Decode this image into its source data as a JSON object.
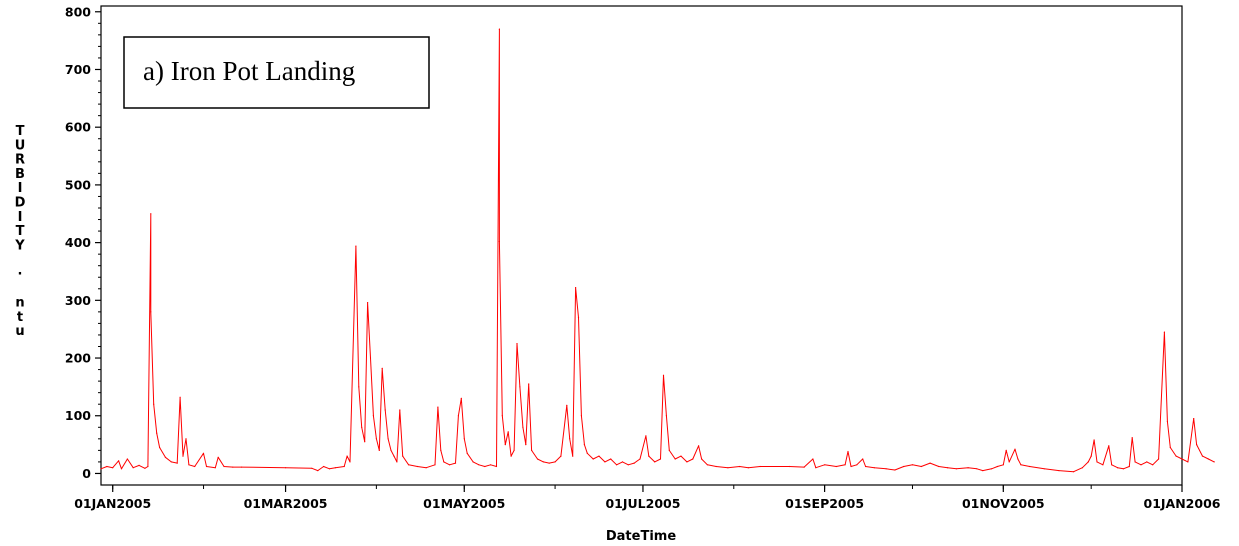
{
  "chart_data": {
    "type": "line",
    "annotation": "a) Iron Pot Landing",
    "xlabel": "DateTime",
    "ylabel_chars": [
      "T",
      "U",
      "R",
      "B",
      "I",
      "D",
      "I",
      "T",
      "Y",
      "",
      "·",
      "",
      "n",
      "t",
      "u"
    ],
    "xlim": [
      "2004-12-28",
      "2006-01-01"
    ],
    "ylim": [
      -20,
      810
    ],
    "yticks": [
      0,
      100,
      200,
      300,
      400,
      500,
      600,
      700,
      800
    ],
    "xticks": [
      {
        "date": "2005-01-01",
        "label": "01JAN2005"
      },
      {
        "date": "2005-03-01",
        "label": "01MAR2005"
      },
      {
        "date": "2005-05-01",
        "label": "01MAY2005"
      },
      {
        "date": "2005-07-01",
        "label": "01JUL2005"
      },
      {
        "date": "2005-09-01",
        "label": "01SEP2005"
      },
      {
        "date": "2005-11-01",
        "label": "01NOV2005"
      },
      {
        "date": "2006-01-01",
        "label": "01JAN2006"
      }
    ],
    "grid": false,
    "legend": "none",
    "series": [
      {
        "color": "#ff0000",
        "points": [
          [
            "2004-12-28",
            8
          ],
          [
            "2004-12-30",
            12
          ],
          [
            "2005-01-01",
            10
          ],
          [
            "2005-01-03",
            22
          ],
          [
            "2005-01-04",
            8
          ],
          [
            "2005-01-06",
            25
          ],
          [
            "2005-01-08",
            10
          ],
          [
            "2005-01-10",
            14
          ],
          [
            "2005-01-12",
            9
          ],
          [
            "2005-01-13",
            12
          ],
          [
            "2005-01-14",
            450
          ],
          [
            "2005-01-14",
            280
          ],
          [
            "2005-01-15",
            120
          ],
          [
            "2005-01-16",
            70
          ],
          [
            "2005-01-17",
            45
          ],
          [
            "2005-01-19",
            28
          ],
          [
            "2005-01-21",
            20
          ],
          [
            "2005-01-23",
            18
          ],
          [
            "2005-01-24",
            132
          ],
          [
            "2005-01-25",
            30
          ],
          [
            "2005-01-26",
            60
          ],
          [
            "2005-01-27",
            15
          ],
          [
            "2005-01-29",
            12
          ],
          [
            "2005-02-01",
            35
          ],
          [
            "2005-02-02",
            12
          ],
          [
            "2005-02-05",
            10
          ],
          [
            "2005-02-06",
            28
          ],
          [
            "2005-02-08",
            12
          ],
          [
            "2005-02-11",
            11
          ],
          [
            "2005-02-14",
            11
          ],
          [
            "2005-03-01",
            10
          ],
          [
            "2005-03-10",
            9
          ],
          [
            "2005-03-12",
            5
          ],
          [
            "2005-03-14",
            12
          ],
          [
            "2005-03-16",
            8
          ],
          [
            "2005-03-18",
            10
          ],
          [
            "2005-03-21",
            12
          ],
          [
            "2005-03-22",
            30
          ],
          [
            "2005-03-23",
            20
          ],
          [
            "2005-03-25",
            394
          ],
          [
            "2005-03-26",
            150
          ],
          [
            "2005-03-27",
            80
          ],
          [
            "2005-03-28",
            55
          ],
          [
            "2005-03-29",
            296
          ],
          [
            "2005-03-30",
            200
          ],
          [
            "2005-03-31",
            100
          ],
          [
            "2005-04-01",
            60
          ],
          [
            "2005-04-02",
            40
          ],
          [
            "2005-04-03",
            182
          ],
          [
            "2005-04-04",
            110
          ],
          [
            "2005-04-05",
            60
          ],
          [
            "2005-04-06",
            40
          ],
          [
            "2005-04-07",
            30
          ],
          [
            "2005-04-08",
            20
          ],
          [
            "2005-04-09",
            110
          ],
          [
            "2005-04-10",
            30
          ],
          [
            "2005-04-12",
            15
          ],
          [
            "2005-04-15",
            12
          ],
          [
            "2005-04-18",
            10
          ],
          [
            "2005-04-21",
            15
          ],
          [
            "2005-04-22",
            115
          ],
          [
            "2005-04-23",
            40
          ],
          [
            "2005-04-24",
            20
          ],
          [
            "2005-04-26",
            15
          ],
          [
            "2005-04-28",
            18
          ],
          [
            "2005-04-29",
            100
          ],
          [
            "2005-04-30",
            130
          ],
          [
            "2005-05-01",
            60
          ],
          [
            "2005-05-02",
            35
          ],
          [
            "2005-05-04",
            20
          ],
          [
            "2005-05-06",
            15
          ],
          [
            "2005-05-08",
            12
          ],
          [
            "2005-05-10",
            15
          ],
          [
            "2005-05-12",
            12
          ],
          [
            "2005-05-13",
            770
          ],
          [
            "2005-05-13",
            402
          ],
          [
            "2005-05-14",
            100
          ],
          [
            "2005-05-15",
            50
          ],
          [
            "2005-05-16",
            72
          ],
          [
            "2005-05-17",
            30
          ],
          [
            "2005-05-18",
            40
          ],
          [
            "2005-05-19",
            225
          ],
          [
            "2005-05-20",
            150
          ],
          [
            "2005-05-21",
            80
          ],
          [
            "2005-05-22",
            50
          ],
          [
            "2005-05-23",
            155
          ],
          [
            "2005-05-24",
            40
          ],
          [
            "2005-05-26",
            25
          ],
          [
            "2005-05-28",
            20
          ],
          [
            "2005-05-30",
            18
          ],
          [
            "2005-06-01",
            20
          ],
          [
            "2005-06-03",
            30
          ],
          [
            "2005-06-05",
            118
          ],
          [
            "2005-06-06",
            60
          ],
          [
            "2005-06-07",
            30
          ],
          [
            "2005-06-08",
            322
          ],
          [
            "2005-06-09",
            270
          ],
          [
            "2005-06-10",
            100
          ],
          [
            "2005-06-11",
            50
          ],
          [
            "2005-06-12",
            35
          ],
          [
            "2005-06-14",
            25
          ],
          [
            "2005-06-16",
            30
          ],
          [
            "2005-06-18",
            20
          ],
          [
            "2005-06-20",
            25
          ],
          [
            "2005-06-22",
            15
          ],
          [
            "2005-06-24",
            20
          ],
          [
            "2005-06-26",
            15
          ],
          [
            "2005-06-28",
            18
          ],
          [
            "2005-06-30",
            25
          ],
          [
            "2005-07-02",
            65
          ],
          [
            "2005-07-03",
            30
          ],
          [
            "2005-07-05",
            20
          ],
          [
            "2005-07-07",
            25
          ],
          [
            "2005-07-08",
            170
          ],
          [
            "2005-07-09",
            100
          ],
          [
            "2005-07-10",
            40
          ],
          [
            "2005-07-12",
            25
          ],
          [
            "2005-07-14",
            30
          ],
          [
            "2005-07-16",
            20
          ],
          [
            "2005-07-18",
            25
          ],
          [
            "2005-07-20",
            48
          ],
          [
            "2005-07-21",
            25
          ],
          [
            "2005-07-23",
            15
          ],
          [
            "2005-07-26",
            12
          ],
          [
            "2005-07-30",
            10
          ],
          [
            "2005-08-03",
            12
          ],
          [
            "2005-08-06",
            10
          ],
          [
            "2005-08-10",
            12
          ],
          [
            "2005-08-20",
            12
          ],
          [
            "2005-08-25",
            11
          ],
          [
            "2005-08-28",
            25
          ],
          [
            "2005-08-29",
            10
          ],
          [
            "2005-09-01",
            15
          ],
          [
            "2005-09-05",
            12
          ],
          [
            "2005-09-08",
            15
          ],
          [
            "2005-09-09",
            38
          ],
          [
            "2005-09-10",
            12
          ],
          [
            "2005-09-12",
            15
          ],
          [
            "2005-09-14",
            25
          ],
          [
            "2005-09-15",
            12
          ],
          [
            "2005-09-18",
            10
          ],
          [
            "2005-09-22",
            8
          ],
          [
            "2005-09-25",
            6
          ],
          [
            "2005-09-28",
            12
          ],
          [
            "2005-10-01",
            15
          ],
          [
            "2005-10-04",
            12
          ],
          [
            "2005-10-07",
            18
          ],
          [
            "2005-10-10",
            12
          ],
          [
            "2005-10-13",
            10
          ],
          [
            "2005-10-16",
            8
          ],
          [
            "2005-10-20",
            10
          ],
          [
            "2005-10-23",
            8
          ],
          [
            "2005-10-25",
            5
          ],
          [
            "2005-10-28",
            8
          ],
          [
            "2005-10-30",
            12
          ],
          [
            "2005-11-01",
            15
          ],
          [
            "2005-11-02",
            40
          ],
          [
            "2005-11-03",
            20
          ],
          [
            "2005-11-05",
            42
          ],
          [
            "2005-11-06",
            25
          ],
          [
            "2005-11-07",
            15
          ],
          [
            "2005-11-10",
            12
          ],
          [
            "2005-11-15",
            8
          ],
          [
            "2005-11-20",
            5
          ],
          [
            "2005-11-25",
            3
          ],
          [
            "2005-11-28",
            10
          ],
          [
            "2005-11-30",
            20
          ],
          [
            "2005-12-01",
            30
          ],
          [
            "2005-12-02",
            58
          ],
          [
            "2005-12-03",
            20
          ],
          [
            "2005-12-05",
            15
          ],
          [
            "2005-12-07",
            48
          ],
          [
            "2005-12-08",
            15
          ],
          [
            "2005-12-10",
            10
          ],
          [
            "2005-12-12",
            8
          ],
          [
            "2005-12-14",
            12
          ],
          [
            "2005-12-15",
            62
          ],
          [
            "2005-12-16",
            20
          ],
          [
            "2005-12-18",
            15
          ],
          [
            "2005-12-20",
            20
          ],
          [
            "2005-12-22",
            15
          ],
          [
            "2005-12-24",
            25
          ],
          [
            "2005-12-26",
            245
          ],
          [
            "2005-12-27",
            90
          ],
          [
            "2005-12-28",
            45
          ],
          [
            "2005-12-30",
            30
          ],
          [
            "2006-01-01",
            25
          ],
          [
            "2006-01-03",
            20
          ],
          [
            "2006-01-05",
            95
          ],
          [
            "2006-01-06",
            50
          ],
          [
            "2006-01-08",
            30
          ],
          [
            "2006-01-10",
            25
          ],
          [
            "2006-01-12",
            20
          ]
        ]
      }
    ]
  }
}
